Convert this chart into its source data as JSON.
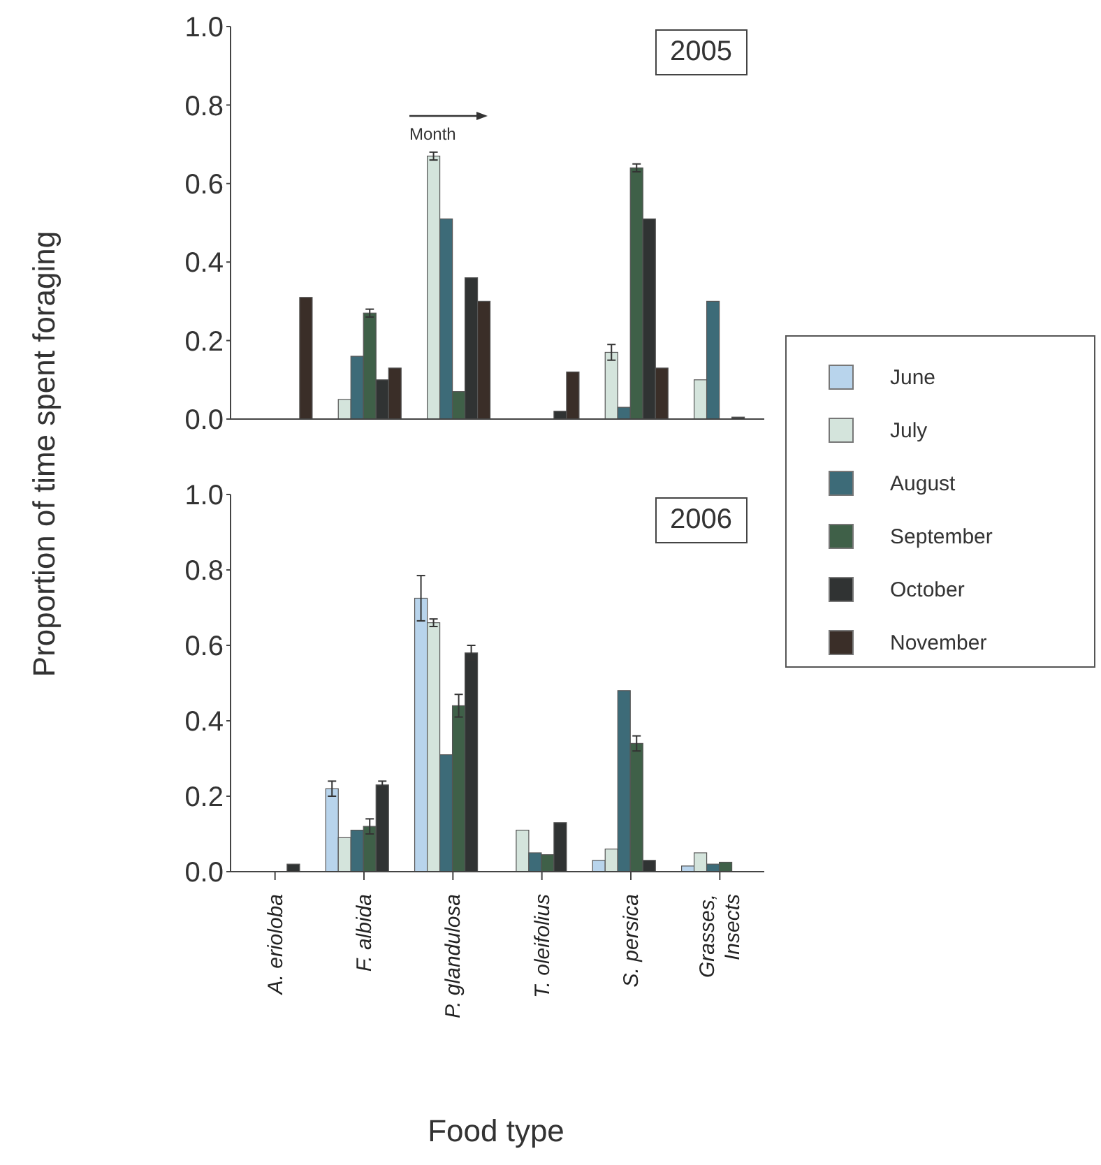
{
  "chart_data": [
    {
      "type": "bar",
      "categories": [
        null,
        null,
        null,
        null,
        null,
        null
      ],
      "ylim": [
        0,
        1
      ],
      "yticks": [
        {
          "value": 0,
          "label": "0.0"
        },
        {
          "value": 0.2,
          "label": "0.2"
        },
        {
          "value": 0.4,
          "label": "0.4"
        },
        {
          "value": 0.6,
          "label": "0.6"
        },
        {
          "value": 0.8,
          "label": "0.8"
        },
        {
          "value": 1,
          "label": "1.0"
        }
      ],
      "tick_labels": "y",
      "legend": "right",
      "annotations": [
        "2005",
        "Month"
      ],
      "series": [
        {
          "name": "June",
          "color": "#b8d4ec",
          "values": [
            null,
            null,
            null,
            null,
            null,
            null
          ]
        },
        {
          "name": "July",
          "color": "#d4e4dc",
          "values": [
            0,
            0.05,
            0.67,
            0,
            0.17,
            0.1
          ],
          "errors": [
            null,
            null,
            0.01,
            null,
            0.02,
            null
          ]
        },
        {
          "name": "August",
          "color": "#3d6b78",
          "values": [
            0,
            0.16,
            0.51,
            0,
            0.03,
            0.3
          ]
        },
        {
          "name": "September",
          "color": "#3f6048",
          "values": [
            0,
            0.27,
            0.07,
            0,
            0.64,
            0
          ],
          "errors": [
            null,
            0.01,
            null,
            null,
            0.01,
            null
          ]
        },
        {
          "name": "October",
          "color": "#303333",
          "values": [
            0,
            0.1,
            0.36,
            0.02,
            0.51,
            0.005
          ]
        },
        {
          "name": "November",
          "color": "#3a2e28",
          "values": [
            0.31,
            0.13,
            0.3,
            0.12,
            0.13,
            0
          ]
        }
      ]
    },
    {
      "type": "bar",
      "categories": [
        "A. erioloba",
        "F. albida",
        "P. glandulosa",
        "T. oleifolius",
        "S. persica",
        "Grasses, Insects"
      ],
      "ylim": [
        0,
        1
      ],
      "yticks": [
        {
          "value": 0,
          "label": "0.0"
        },
        {
          "value": 0.2,
          "label": "0.2"
        },
        {
          "value": 0.4,
          "label": "0.4"
        },
        {
          "value": 0.6,
          "label": "0.6"
        },
        {
          "value": 0.8,
          "label": "0.8"
        },
        {
          "value": 1,
          "label": "1.0"
        }
      ],
      "xlabel": "Food type",
      "ylabel": "Proportion of time spent foraging",
      "annotations": [
        "2006"
      ],
      "series": [
        {
          "color": "#b8d4ec",
          "values": [
            0,
            0.22,
            0.725,
            0,
            0.03,
            0.015
          ],
          "errors": [
            null,
            0.02,
            0.06,
            null,
            null,
            null
          ]
        },
        {
          "color": "#d4e4dc",
          "values": [
            0,
            0.09,
            0.66,
            0.11,
            0.06,
            0.05
          ],
          "errors": [
            null,
            null,
            0.01,
            null,
            null,
            null
          ]
        },
        {
          "color": "#3d6b78",
          "values": [
            0,
            0.11,
            0.31,
            0.05,
            0.48,
            0.02
          ]
        },
        {
          "color": "#3f6048",
          "values": [
            0,
            0.12,
            0.44,
            0.045,
            0.34,
            0.025
          ],
          "errors": [
            null,
            0.02,
            0.03,
            null,
            0.02,
            null
          ]
        },
        {
          "color": "#303333",
          "values": [
            0.02,
            0.23,
            0.58,
            0.13,
            0.03,
            0
          ],
          "errors": [
            null,
            0.01,
            0.02,
            null,
            null,
            null
          ]
        },
        {
          "color": "#3a2e28",
          "values": [
            null,
            null,
            null,
            null,
            null,
            null
          ]
        }
      ]
    }
  ]
}
